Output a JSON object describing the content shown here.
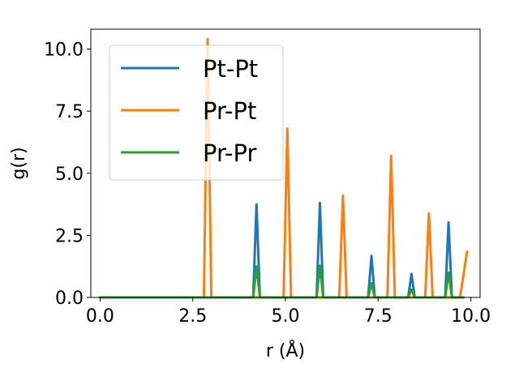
{
  "chart_data": {
    "type": "line",
    "title": "",
    "xlabel": "r (Å)",
    "ylabel": "g(r)",
    "xlim": [
      -0.25,
      10.25
    ],
    "ylim": [
      0,
      10.8
    ],
    "xticks": [
      0.0,
      2.5,
      5.0,
      7.5,
      10.0
    ],
    "xtick_labels": [
      "0.0",
      "2.5",
      "5.0",
      "7.5",
      "10.0"
    ],
    "yticks": [
      0.0,
      2.5,
      5.0,
      7.5,
      10.0
    ],
    "ytick_labels": [
      "0.0",
      "2.5",
      "5.0",
      "7.5",
      "10.0"
    ],
    "grid": false,
    "legend_position": "top-left",
    "series": [
      {
        "name": "Pt-Pt",
        "color": "#1f77b4",
        "x": [
          0.0,
          4.13,
          4.22,
          4.31,
          5.84,
          5.93,
          6.02,
          7.23,
          7.32,
          7.41,
          8.31,
          8.4,
          8.49,
          9.31,
          9.4,
          9.49,
          9.8
        ],
        "y": [
          0.0,
          0.0,
          3.75,
          0.0,
          0.0,
          3.8,
          0.0,
          0.0,
          1.67,
          0.0,
          0.0,
          0.95,
          0.0,
          0.0,
          3.02,
          0.0,
          0.0
        ]
      },
      {
        "name": "Pr-Pt",
        "color": "#ff7f0e",
        "x": [
          0.0,
          2.8,
          2.9,
          3.0,
          4.95,
          5.05,
          5.15,
          6.45,
          6.55,
          6.65,
          7.75,
          7.85,
          7.95,
          8.77,
          8.87,
          8.97,
          9.71,
          9.9
        ],
        "y": [
          0.0,
          0.0,
          10.4,
          0.0,
          0.0,
          6.8,
          0.0,
          0.0,
          4.1,
          0.0,
          0.0,
          5.7,
          0.0,
          0.0,
          3.38,
          0.0,
          0.0,
          1.85
        ]
      },
      {
        "name": "Pr-Pr",
        "color": "#2ca02c",
        "x": [
          0.0,
          4.13,
          4.22,
          4.31,
          5.84,
          5.93,
          6.02,
          7.23,
          7.32,
          7.41,
          8.31,
          8.4,
          8.49,
          9.31,
          9.4,
          9.49,
          9.8
        ],
        "y": [
          0.0,
          0.0,
          1.25,
          0.0,
          0.0,
          1.28,
          0.0,
          0.0,
          0.57,
          0.0,
          0.0,
          0.32,
          0.0,
          0.0,
          1.0,
          0.0,
          0.0
        ]
      }
    ]
  }
}
